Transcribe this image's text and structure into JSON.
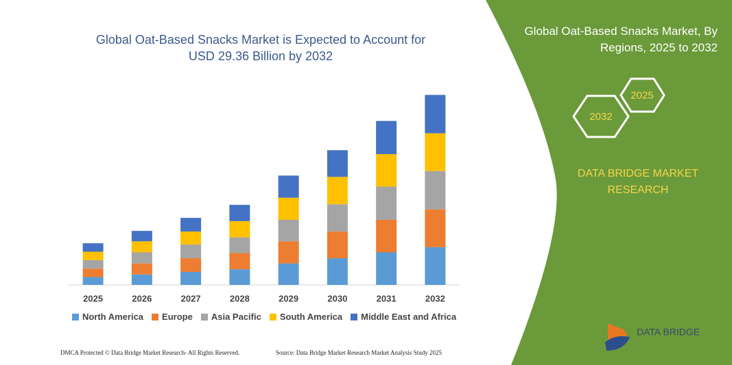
{
  "chart_data": {
    "type": "bar",
    "stacked": true,
    "title": "Global Oat-Based Snacks Market is Expected to Account for USD 29.36 Billion by 2032",
    "categories": [
      "2025",
      "2026",
      "2027",
      "2028",
      "2029",
      "2030",
      "2031",
      "2032"
    ],
    "series": [
      {
        "name": "North America",
        "color": "#5b9bd5",
        "values": [
          1.2,
          1.6,
          2.0,
          2.4,
          3.3,
          4.1,
          5.0,
          5.8
        ]
      },
      {
        "name": "Europe",
        "color": "#ed7d31",
        "values": [
          1.3,
          1.7,
          2.1,
          2.5,
          3.4,
          4.1,
          5.0,
          5.8
        ]
      },
      {
        "name": "Asia Pacific",
        "color": "#a5a5a5",
        "values": [
          1.3,
          1.7,
          2.1,
          2.4,
          3.3,
          4.2,
          5.1,
          5.9
        ]
      },
      {
        "name": "South America",
        "color": "#ffc000",
        "values": [
          1.3,
          1.7,
          2.0,
          2.5,
          3.4,
          4.2,
          5.0,
          5.8
        ]
      },
      {
        "name": "Middle East and Africa",
        "color": "#4472c4",
        "values": [
          1.3,
          1.6,
          2.1,
          2.5,
          3.4,
          4.1,
          5.1,
          5.9
        ]
      }
    ],
    "ylim": [
      0,
      30
    ],
    "legend": "bottom"
  },
  "panel": {
    "title": "Global Oat-Based Snacks Market, By Regions, 2025 to 2032",
    "hexagons": [
      "2032",
      "2025"
    ],
    "brand": "DATA BRIDGE MARKET RESEARCH",
    "logo": "DATA BRIDGE"
  },
  "footer": {
    "left": "DMCA Protected © Data Bridge Market Research-  All Rights Reserved.",
    "right": "Source: Data Bridge Market Research  Market Analysis Study 2025"
  }
}
